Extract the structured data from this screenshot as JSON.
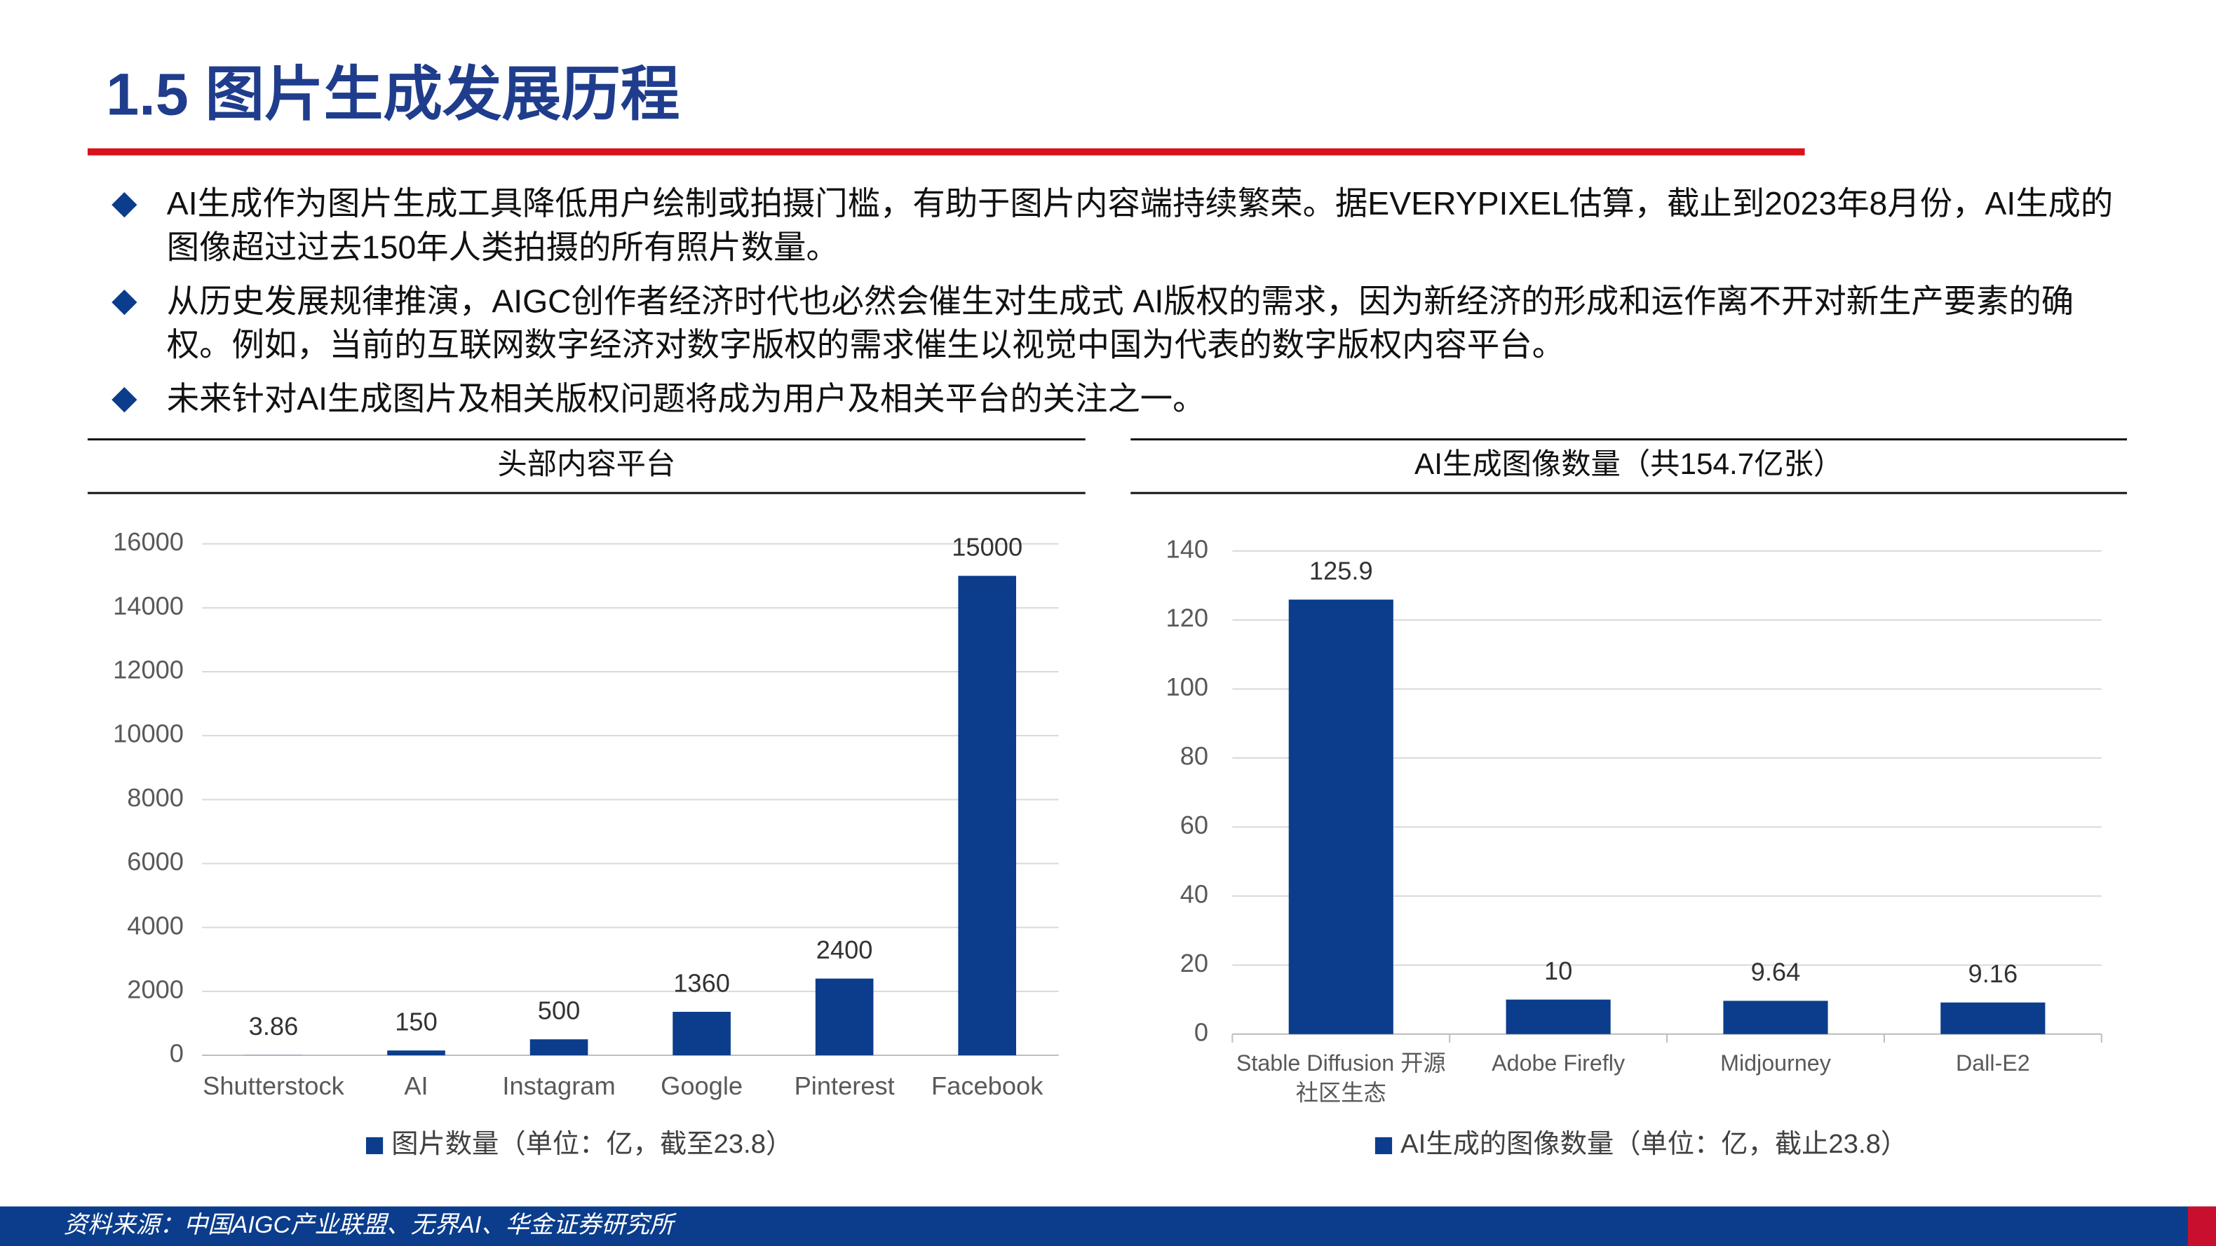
{
  "title": "1.5 图片生成发展历程",
  "bullets": [
    "AI生成作为图片生成工具降低用户绘制或拍摄门槛，有助于图片内容端持续繁荣。据EVERYPIXEL估算，截止到2023年8月份，AI生成的图像超过过去150年人类拍摄的所有照片数量。",
    "从历史发展规律推演，AIGC创作者经济时代也必然会催生对生成式 AI版权的需求，因为新经济的形成和运作离不开对新生产要素的确权。例如，当前的互联网数字经济对数字版权的需求催生以视觉中国为代表的数字版权内容平台。",
    "未来针对AI生成图片及相关版权问题将成为用户及相关平台的关注之一。"
  ],
  "chart_data": [
    {
      "type": "bar",
      "title": "头部内容平台",
      "categories": [
        "Shutterstock",
        "AI",
        "Instagram",
        "Google",
        "Pinterest",
        "Facebook"
      ],
      "series": [
        {
          "name": "图片数量（单位：亿，截至23.8）",
          "color": "#0b3d8c",
          "values": [
            3.86,
            150,
            500,
            1360,
            2400,
            15000
          ]
        }
      ],
      "ylim": [
        0,
        16000
      ],
      "yticks": [
        0,
        2000,
        4000,
        6000,
        8000,
        10000,
        12000,
        14000,
        16000
      ],
      "grid": true
    },
    {
      "type": "bar",
      "title": "AI生成图像数量（共154.7亿张）",
      "categories": [
        "Stable Diffusion 开源社区生态",
        "Adobe Firefly",
        "Midjourney",
        "Dall-E2"
      ],
      "series": [
        {
          "name": "AI生成的图像数量（单位：亿，截止23.8）",
          "color": "#0b3d8c",
          "values": [
            125.9,
            10,
            9.64,
            9.16
          ]
        }
      ],
      "ylim": [
        0,
        140
      ],
      "yticks": [
        0,
        20,
        40,
        60,
        80,
        100,
        120,
        140
      ],
      "grid": true
    }
  ],
  "source": "资料来源：中国AIGC产业联盟、无界AI、华金证券研究所"
}
